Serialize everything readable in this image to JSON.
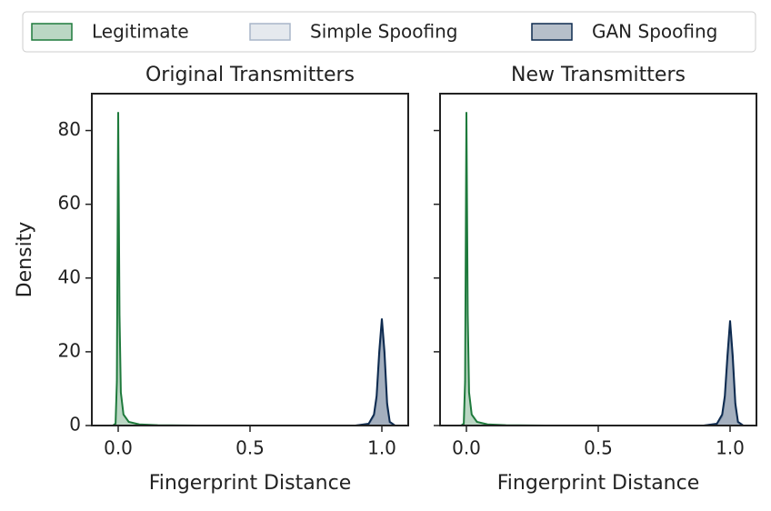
{
  "chart_data": [
    {
      "type": "area",
      "title": "Original Transmitters",
      "xlabel": "Fingerprint Distance",
      "ylabel": "Density",
      "x": [
        -0.02,
        -0.01,
        -0.005,
        0,
        0.005,
        0.01,
        0.02,
        0.04,
        0.08,
        0.15,
        0.3,
        0.5,
        0.7,
        0.9,
        0.95,
        0.97,
        0.98,
        0.99,
        1.0,
        1.01,
        1.02,
        1.03,
        1.05
      ],
      "series": [
        {
          "name": "Legitimate",
          "color": "#1e7a3c",
          "values": [
            0,
            0.5,
            12,
            85,
            30,
            9,
            3,
            1,
            0.3,
            0.1,
            0,
            0,
            0,
            0,
            0,
            0,
            0,
            0,
            0,
            0,
            0,
            0,
            0
          ]
        },
        {
          "name": "Simple Spoofing",
          "color": "#a9b6c8",
          "values": [
            0,
            0,
            0,
            0,
            0,
            0,
            0,
            0,
            0,
            0,
            0,
            0,
            0,
            0,
            0.4,
            2.5,
            7,
            18,
            27,
            18,
            5,
            0.8,
            0
          ]
        },
        {
          "name": "GAN Spoofing",
          "color": "#0d2a4f",
          "values": [
            0,
            0,
            0,
            0,
            0,
            0,
            0,
            0,
            0,
            0,
            0,
            0,
            0,
            0,
            0.5,
            3,
            8,
            20,
            29,
            20,
            6,
            1,
            0
          ]
        }
      ],
      "xlim": [
        -0.1,
        1.1
      ],
      "xticks": [
        {
          "value": 0,
          "label": "0.0"
        },
        0.5,
        {
          "value": 1,
          "label": "1.0"
        }
      ],
      "ylim": [
        0,
        90
      ],
      "yticks": [
        0,
        20,
        40,
        60,
        80
      ]
    },
    {
      "type": "area",
      "title": "New Transmitters",
      "xlabel": "Fingerprint Distance",
      "x": [
        -0.02,
        -0.01,
        -0.005,
        0,
        0.005,
        0.01,
        0.02,
        0.04,
        0.08,
        0.15,
        0.3,
        0.5,
        0.7,
        0.9,
        0.95,
        0.97,
        0.98,
        0.99,
        1.0,
        1.01,
        1.02,
        1.03,
        1.05
      ],
      "series": [
        {
          "color": "#1e7a3c",
          "values": [
            0,
            0.5,
            12,
            85,
            30,
            9,
            3,
            1,
            0.3,
            0.1,
            0,
            0,
            0,
            0,
            0,
            0,
            0,
            0,
            0,
            0,
            0,
            0,
            0
          ]
        },
        {
          "color": "#a9b6c8",
          "values": [
            0,
            0,
            0,
            0,
            0,
            0,
            0,
            0,
            0,
            0,
            0,
            0,
            0,
            0,
            0.4,
            2.5,
            7,
            17,
            26,
            17,
            5,
            0.8,
            0
          ]
        },
        {
          "color": "#0d2a4f",
          "values": [
            0,
            0,
            0,
            0,
            0,
            0,
            0,
            0,
            0,
            0,
            0,
            0,
            0,
            0,
            0.5,
            3,
            8,
            19,
            28.5,
            19,
            6,
            1,
            0
          ]
        }
      ],
      "xlim": [
        -0.1,
        1.1
      ],
      "xticks": [
        {
          "value": 0,
          "label": "0.0"
        },
        0.5,
        {
          "value": 1,
          "label": "1.0"
        }
      ],
      "ylim": [
        0,
        90
      ],
      "yticks": [
        0,
        20,
        40,
        60,
        80
      ]
    }
  ]
}
